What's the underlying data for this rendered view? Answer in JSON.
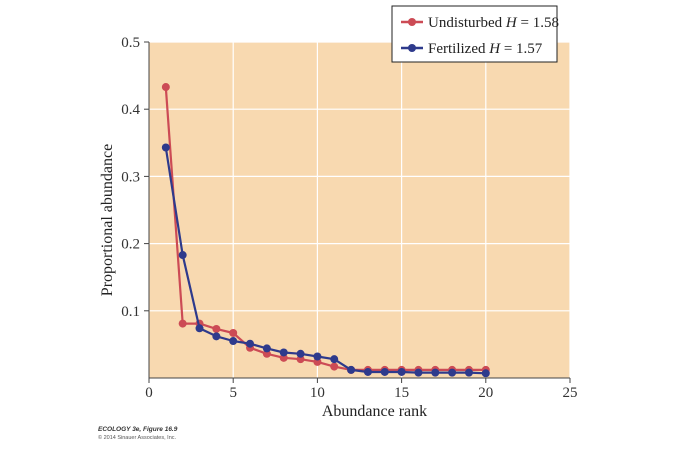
{
  "chart_data": {
    "type": "line",
    "xlabel": "Abundance rank",
    "ylabel": "Proportional abundance",
    "xlim": [
      0,
      25
    ],
    "ylim": [
      0,
      0.5
    ],
    "xticks": [
      0,
      5,
      10,
      15,
      20,
      25
    ],
    "xtick_labels": [
      "0",
      "5",
      "10",
      "15",
      "20",
      "25"
    ],
    "yticks": [
      0.1,
      0.2,
      0.3,
      0.4,
      0.5
    ],
    "ytick_labels": [
      "0.1",
      "0.2",
      "0.3",
      "0.4",
      "0.5"
    ],
    "grid": true,
    "background_color": "#F8D9B0",
    "grid_color": "#FFFFFF",
    "legend_position": "top-right",
    "x": [
      1,
      2,
      3,
      4,
      5,
      6,
      7,
      8,
      9,
      10,
      11,
      12,
      13,
      14,
      15,
      16,
      17,
      18,
      19,
      20
    ],
    "series": [
      {
        "name": "Undisturbed",
        "h_label": "H",
        "h_value": "= 1.58",
        "color": "#CC4B55",
        "values": [
          0.433,
          0.081,
          0.081,
          0.073,
          0.067,
          0.045,
          0.036,
          0.03,
          0.028,
          0.024,
          0.017,
          0.012,
          0.012,
          0.012,
          0.012,
          0.012,
          0.012,
          0.012,
          0.012,
          0.012
        ]
      },
      {
        "name": "Fertilized",
        "h_label": "H",
        "h_value": "= 1.57",
        "color": "#2E3A8C",
        "values": [
          0.343,
          0.183,
          0.074,
          0.062,
          0.055,
          0.051,
          0.044,
          0.038,
          0.036,
          0.032,
          0.028,
          0.012,
          0.009,
          0.009,
          0.009,
          0.008,
          0.008,
          0.008,
          0.008,
          0.007
        ]
      }
    ]
  },
  "credit": {
    "line1": "ECOLOGY 3e, Figure 16.9",
    "line2": "© 2014 Sinauer Associates, Inc."
  }
}
